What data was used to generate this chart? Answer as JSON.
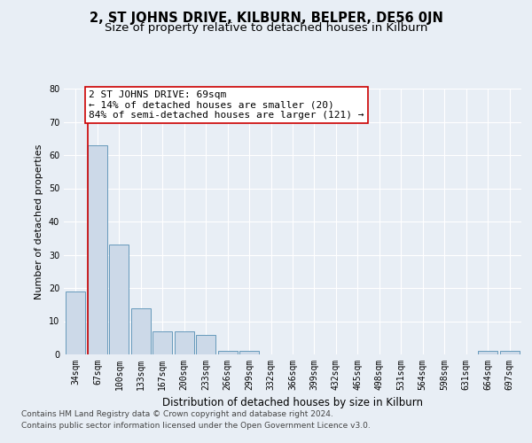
{
  "title1": "2, ST JOHNS DRIVE, KILBURN, BELPER, DE56 0JN",
  "title2": "Size of property relative to detached houses in Kilburn",
  "xlabel": "Distribution of detached houses by size in Kilburn",
  "ylabel": "Number of detached properties",
  "categories": [
    "34sqm",
    "67sqm",
    "100sqm",
    "133sqm",
    "167sqm",
    "200sqm",
    "233sqm",
    "266sqm",
    "299sqm",
    "332sqm",
    "366sqm",
    "399sqm",
    "432sqm",
    "465sqm",
    "498sqm",
    "531sqm",
    "564sqm",
    "598sqm",
    "631sqm",
    "664sqm",
    "697sqm"
  ],
  "values": [
    19,
    63,
    33,
    14,
    7,
    7,
    6,
    1,
    1,
    0,
    0,
    0,
    0,
    0,
    0,
    0,
    0,
    0,
    0,
    1,
    1
  ],
  "bar_color": "#ccd9e8",
  "bar_edge_color": "#6699bb",
  "marker_color": "#cc0000",
  "annotation_line1": "2 ST JOHNS DRIVE: 69sqm",
  "annotation_line2": "← 14% of detached houses are smaller (20)",
  "annotation_line3": "84% of semi-detached houses are larger (121) →",
  "ylim": [
    0,
    80
  ],
  "yticks": [
    0,
    10,
    20,
    30,
    40,
    50,
    60,
    70,
    80
  ],
  "bg_color": "#e8eef5",
  "grid_color": "#ffffff",
  "footer1": "Contains HM Land Registry data © Crown copyright and database right 2024.",
  "footer2": "Contains public sector information licensed under the Open Government Licence v3.0.",
  "title1_fontsize": 10.5,
  "title2_fontsize": 9.5,
  "xlabel_fontsize": 8.5,
  "ylabel_fontsize": 8,
  "tick_fontsize": 7,
  "annotation_fontsize": 8,
  "footer_fontsize": 6.5
}
